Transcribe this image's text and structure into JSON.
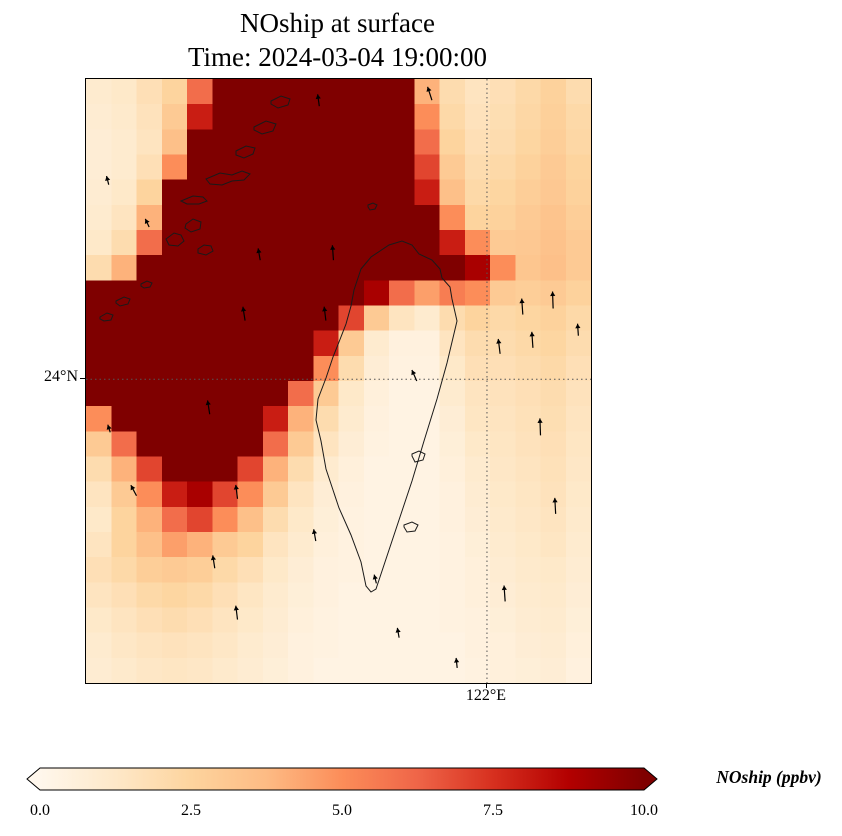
{
  "title": {
    "line1": "NOship at surface",
    "line2": "Time: 2024-03-04 19:00:00"
  },
  "axes": {
    "y_tick_label": "24°N",
    "x_tick_label": "122°E",
    "y_tick_frac": 0.497,
    "x_tick_frac": 0.794
  },
  "colorbar": {
    "label": "NOship (ppbv)",
    "ticks": [
      "0.0",
      "2.5",
      "5.0",
      "7.5",
      "10.0"
    ],
    "min": 0,
    "max": 10,
    "extend": "both"
  },
  "chart_data": {
    "type": "heatmap",
    "title": "NOship at surface",
    "subtitle": "Time: 2024-03-04 19:00:00",
    "variable": "NOship",
    "units": "ppbv",
    "value_range": [
      0,
      10
    ],
    "gridlines": {
      "lat": "24°N",
      "lon": "122°E"
    },
    "colormap": {
      "name": "OrRd-like",
      "stops": [
        {
          "v": 0.0,
          "c": "#fff7ec"
        },
        {
          "v": 1.25,
          "c": "#fee8c8"
        },
        {
          "v": 2.5,
          "c": "#fdd49e"
        },
        {
          "v": 3.75,
          "c": "#fdbb84"
        },
        {
          "v": 5.0,
          "c": "#fc8d59"
        },
        {
          "v": 6.25,
          "c": "#ef6548"
        },
        {
          "v": 7.5,
          "c": "#d7301f"
        },
        {
          "v": 8.75,
          "c": "#b30000"
        },
        {
          "v": 10.0,
          "c": "#7f0000"
        }
      ]
    },
    "grid_shape": [
      24,
      20
    ],
    "grid": [
      [
        1.0,
        1.2,
        1.8,
        2.5,
        6,
        12,
        12,
        12,
        12,
        12,
        12,
        12,
        12,
        4,
        2.0,
        1.5,
        1.8,
        2.2,
        2.6,
        2.0
      ],
      [
        0.9,
        1.1,
        1.6,
        3.0,
        8,
        12,
        12,
        12,
        12,
        12,
        12,
        12,
        12,
        5,
        2.2,
        1.6,
        1.9,
        2.3,
        2.7,
        2.2
      ],
      [
        0.8,
        1.0,
        1.5,
        3.5,
        12,
        12,
        12,
        12,
        12,
        12,
        12,
        12,
        12,
        6,
        2.5,
        1.8,
        2.0,
        2.4,
        2.8,
        2.3
      ],
      [
        0.8,
        1.0,
        1.8,
        5.0,
        12,
        12,
        12,
        12,
        12,
        12,
        12,
        12,
        12,
        7,
        3.0,
        2.0,
        2.2,
        2.6,
        3.0,
        2.5
      ],
      [
        0.9,
        1.2,
        2.5,
        12,
        12,
        12,
        12,
        12,
        12,
        12,
        12,
        12,
        12,
        8,
        3.5,
        2.2,
        2.4,
        2.8,
        3.1,
        2.6
      ],
      [
        1.0,
        1.5,
        4.0,
        12,
        12,
        12,
        12,
        12,
        12,
        12,
        12,
        12,
        12,
        10,
        5.0,
        2.5,
        2.6,
        3.0,
        3.3,
        2.8
      ],
      [
        1.2,
        2.0,
        6.0,
        12,
        12,
        12,
        12,
        12,
        12,
        12,
        12,
        12,
        12,
        12,
        8.0,
        5.0,
        3.0,
        3.1,
        3.4,
        3.0
      ],
      [
        2.0,
        4.0,
        12,
        12,
        12,
        12,
        12,
        12,
        12,
        12,
        12,
        12,
        12,
        12,
        12,
        9.0,
        5.0,
        3.2,
        3.5,
        3.0
      ],
      [
        12,
        12,
        12,
        12,
        12,
        12,
        12,
        12,
        12,
        12,
        12,
        9.0,
        6.0,
        4.5,
        5.5,
        5.0,
        3.0,
        2.8,
        3.0,
        2.6
      ],
      [
        12,
        12,
        12,
        12,
        12,
        12,
        12,
        12,
        12,
        12,
        7.0,
        3.0,
        1.5,
        1.0,
        2.0,
        2.5,
        2.2,
        2.4,
        2.6,
        2.2
      ],
      [
        12,
        12,
        12,
        12,
        12,
        12,
        12,
        12,
        12,
        8.0,
        3.0,
        1.0,
        0.5,
        0.5,
        1.5,
        2.0,
        2.0,
        2.2,
        2.4,
        2.0
      ],
      [
        12,
        12,
        12,
        12,
        12,
        12,
        12,
        12,
        10,
        5.0,
        2.0,
        0.8,
        0.4,
        0.4,
        1.2,
        1.8,
        1.8,
        2.0,
        2.2,
        1.8
      ],
      [
        12,
        12,
        12,
        12,
        12,
        12,
        12,
        10,
        6.0,
        3.0,
        1.2,
        0.6,
        0.3,
        0.3,
        1.0,
        1.5,
        1.6,
        1.8,
        2.0,
        1.6
      ],
      [
        5.0,
        10,
        12,
        12,
        12,
        12,
        12,
        8.0,
        4.0,
        2.0,
        1.0,
        0.5,
        0.3,
        0.3,
        0.8,
        1.4,
        1.5,
        1.7,
        1.9,
        1.5
      ],
      [
        3.0,
        6.0,
        10,
        12,
        12,
        12,
        10,
        6.0,
        3.0,
        1.5,
        0.8,
        0.4,
        0.3,
        0.3,
        0.7,
        1.2,
        1.4,
        1.6,
        1.8,
        1.4
      ],
      [
        2.0,
        4.0,
        7.0,
        10,
        12,
        10,
        7.0,
        4.0,
        2.0,
        1.0,
        0.6,
        0.3,
        0.3,
        0.3,
        0.6,
        1.0,
        1.3,
        1.5,
        1.7,
        1.3
      ],
      [
        1.5,
        3.0,
        5.0,
        8.0,
        9.0,
        7.0,
        5.0,
        3.0,
        1.5,
        0.8,
        0.5,
        0.3,
        0.3,
        0.3,
        0.5,
        0.9,
        1.2,
        1.4,
        1.6,
        1.2
      ],
      [
        1.2,
        2.5,
        4.0,
        6.0,
        7.0,
        5.0,
        3.5,
        2.0,
        1.2,
        0.7,
        0.4,
        0.3,
        0.3,
        0.3,
        0.5,
        0.8,
        1.1,
        1.3,
        1.5,
        1.1
      ],
      [
        1.5,
        2.5,
        3.5,
        4.5,
        4.0,
        3.0,
        2.5,
        1.5,
        1.0,
        0.6,
        0.4,
        0.3,
        0.3,
        0.3,
        0.4,
        0.7,
        1.0,
        1.2,
        1.4,
        1.0
      ],
      [
        1.8,
        2.2,
        2.8,
        3.0,
        2.8,
        2.2,
        1.8,
        1.2,
        0.8,
        0.5,
        0.4,
        0.3,
        0.3,
        0.3,
        0.4,
        0.6,
        0.9,
        1.1,
        1.2,
        0.9
      ],
      [
        1.5,
        1.8,
        2.2,
        2.4,
        2.2,
        1.8,
        1.4,
        1.0,
        0.7,
        0.5,
        0.3,
        0.3,
        0.3,
        0.3,
        0.4,
        0.6,
        0.8,
        1.0,
        1.1,
        0.8
      ],
      [
        1.2,
        1.5,
        1.8,
        2.0,
        1.8,
        1.5,
        1.2,
        0.9,
        0.6,
        0.4,
        0.3,
        0.3,
        0.3,
        0.3,
        0.4,
        0.5,
        0.7,
        0.9,
        1.0,
        0.7
      ],
      [
        1.0,
        1.3,
        1.5,
        1.6,
        1.5,
        1.3,
        1.0,
        0.8,
        0.5,
        0.4,
        0.3,
        0.3,
        0.3,
        0.3,
        0.3,
        0.5,
        0.6,
        0.8,
        0.9,
        0.6
      ],
      [
        0.9,
        1.1,
        1.3,
        1.4,
        1.3,
        1.1,
        0.9,
        0.7,
        0.5,
        0.3,
        0.3,
        0.3,
        0.3,
        0.3,
        0.3,
        0.4,
        0.6,
        0.7,
        0.8,
        0.5
      ]
    ],
    "quiver": [
      {
        "x": 0.685,
        "y": 0.035,
        "a": 18,
        "l": 14
      },
      {
        "x": 0.462,
        "y": 0.045,
        "a": 8,
        "l": 12
      },
      {
        "x": 0.045,
        "y": 0.175,
        "a": 14,
        "l": 9
      },
      {
        "x": 0.125,
        "y": 0.245,
        "a": 25,
        "l": 9
      },
      {
        "x": 0.345,
        "y": 0.3,
        "a": 10,
        "l": 12
      },
      {
        "x": 0.49,
        "y": 0.3,
        "a": 4,
        "l": 15
      },
      {
        "x": 0.315,
        "y": 0.4,
        "a": 9,
        "l": 14
      },
      {
        "x": 0.475,
        "y": 0.4,
        "a": 7,
        "l": 14
      },
      {
        "x": 0.865,
        "y": 0.39,
        "a": 4,
        "l": 16
      },
      {
        "x": 0.925,
        "y": 0.38,
        "a": 2,
        "l": 17
      },
      {
        "x": 0.82,
        "y": 0.455,
        "a": 7,
        "l": 15
      },
      {
        "x": 0.885,
        "y": 0.445,
        "a": 4,
        "l": 16
      },
      {
        "x": 0.975,
        "y": 0.425,
        "a": 4,
        "l": 12
      },
      {
        "x": 0.655,
        "y": 0.5,
        "a": 24,
        "l": 12
      },
      {
        "x": 0.245,
        "y": 0.555,
        "a": 9,
        "l": 14
      },
      {
        "x": 0.048,
        "y": 0.585,
        "a": 18,
        "l": 8
      },
      {
        "x": 0.9,
        "y": 0.59,
        "a": 2,
        "l": 17
      },
      {
        "x": 0.1,
        "y": 0.69,
        "a": 28,
        "l": 12
      },
      {
        "x": 0.3,
        "y": 0.695,
        "a": 7,
        "l": 14
      },
      {
        "x": 0.455,
        "y": 0.765,
        "a": 10,
        "l": 12
      },
      {
        "x": 0.93,
        "y": 0.72,
        "a": 3,
        "l": 16
      },
      {
        "x": 0.255,
        "y": 0.81,
        "a": 9,
        "l": 13
      },
      {
        "x": 0.575,
        "y": 0.835,
        "a": 14,
        "l": 9
      },
      {
        "x": 0.3,
        "y": 0.895,
        "a": 7,
        "l": 14
      },
      {
        "x": 0.83,
        "y": 0.865,
        "a": 4,
        "l": 16
      },
      {
        "x": 0.62,
        "y": 0.925,
        "a": 10,
        "l": 10
      },
      {
        "x": 0.735,
        "y": 0.975,
        "a": 6,
        "l": 10
      }
    ],
    "coastlines": [
      "M275,190 L285,178 L303,166 L316,162 L326,166 L333,175 L346,181 L354,190 L356,199 L364,208 L366,220 L371,242 L361,284 L351,320 L338,362 L326,402 L313,441 L303,471 L295,495 L290,510 L285,513 L280,507 L275,483 L265,456 L253,429 L247,411 L240,390 L235,362 L230,341 L232,320 L240,299 L247,278 L253,263 L260,245 L265,227 L268,211 Z",
      "M80,160 l8,-6 7,2 3,6 -6,5 -9,-1 z",
      "M100,145 l7,-5 8,3 -1,7 -9,3 -6,-4 z",
      "M112,170 l6,-4 7,1 2,5 -7,4 -8,-2 z",
      "M120,100 l14,-6 12,2 10,-4 8,3 -6,6 -12,1 -10,4 -12,-1 z",
      "M150,72 l10,-5 9,2 -2,6 -9,4 -8,-3 z",
      "M168,48 l12,-6 10,3 -3,7 -11,3 -8,-4 z",
      "M185,22 l10,-5 9,3 -2,6 -10,3 -7,-4 z",
      "M95,122 l12,-5 10,1 4,4 -8,3 -12,0 -6,-3 z",
      "M30,222 l8,-4 6,2 -2,5 -8,2 -4,-3 z",
      "M14,238 l7,-4 6,2 -2,5 -7,1 -4,-2 z",
      "M55,205 l6,-3 5,2 -2,4 -6,1 -3,-2 z",
      "M282,126 l5,-2 4,2 -2,4 -5,1 -2,-3 z",
      "M326,375 l7,-3 6,3 -2,6 -8,2 -3,-6 z",
      "M318,446 l8,-3 6,3 -3,6 -8,1 -3,-5 z"
    ]
  }
}
